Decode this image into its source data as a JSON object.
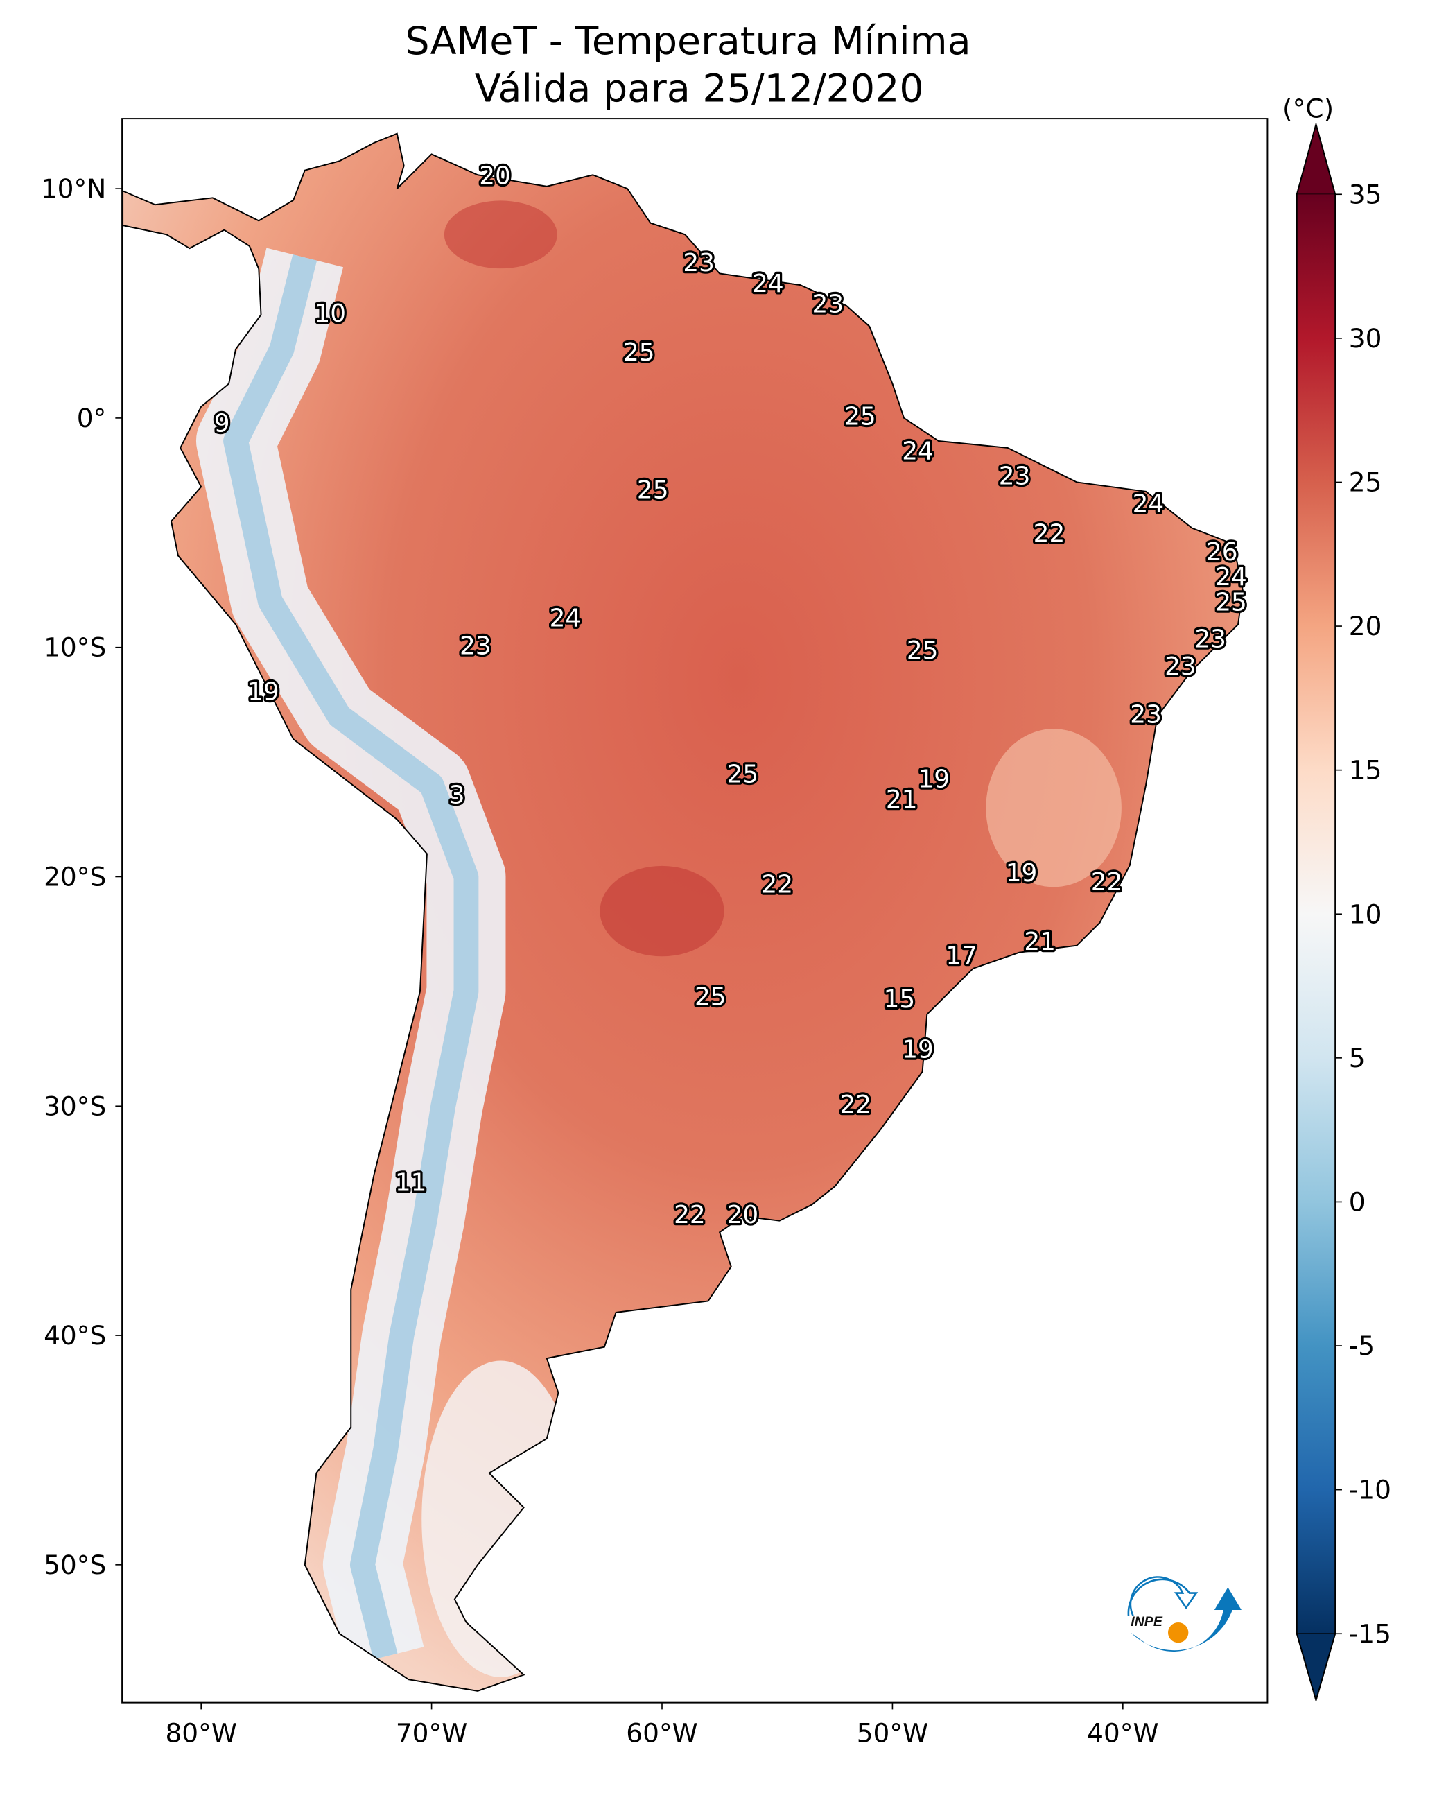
{
  "title": {
    "line1": "SAMeT - Temperatura Mínima",
    "line2": "Válida para 25/12/2020"
  },
  "map": {
    "extent": {
      "lon": [
        -83.4,
        -33.7
      ],
      "lat": [
        -56.0,
        12.9
      ]
    },
    "lon_ticks": [
      {
        "value": -80,
        "label": "80°W"
      },
      {
        "value": -70,
        "label": "70°W"
      },
      {
        "value": -60,
        "label": "60°W"
      },
      {
        "value": -50,
        "label": "50°W"
      },
      {
        "value": -40,
        "label": "40°W"
      }
    ],
    "lat_ticks": [
      {
        "value": 10,
        "label": "10°N"
      },
      {
        "value": 0,
        "label": "0°"
      },
      {
        "value": -10,
        "label": "10°S"
      },
      {
        "value": -20,
        "label": "20°S"
      },
      {
        "value": -30,
        "label": "30°S"
      },
      {
        "value": -40,
        "label": "40°S"
      },
      {
        "value": -50,
        "label": "50°S"
      }
    ],
    "temperature_labels": [
      {
        "lon": -67.25,
        "lat": 10.6,
        "value": "20"
      },
      {
        "lon": -58.4,
        "lat": 6.8,
        "value": "23"
      },
      {
        "lon": -55.4,
        "lat": 5.9,
        "value": "24"
      },
      {
        "lon": -52.8,
        "lat": 5.0,
        "value": "23"
      },
      {
        "lon": -74.4,
        "lat": 4.6,
        "value": "10"
      },
      {
        "lon": -61.0,
        "lat": 2.9,
        "value": "25"
      },
      {
        "lon": -79.1,
        "lat": -0.2,
        "value": "9"
      },
      {
        "lon": -51.4,
        "lat": 0.1,
        "value": "25"
      },
      {
        "lon": -48.9,
        "lat": -1.4,
        "value": "24"
      },
      {
        "lon": -60.4,
        "lat": -3.1,
        "value": "25"
      },
      {
        "lon": -44.7,
        "lat": -2.5,
        "value": "23"
      },
      {
        "lon": -38.9,
        "lat": -3.7,
        "value": "24"
      },
      {
        "lon": -43.2,
        "lat": -5.0,
        "value": "22"
      },
      {
        "lon": -35.7,
        "lat": -5.8,
        "value": "26"
      },
      {
        "lon": -35.3,
        "lat": -6.9,
        "value": "24"
      },
      {
        "lon": -35.3,
        "lat": -8.0,
        "value": "25"
      },
      {
        "lon": -64.2,
        "lat": -8.7,
        "value": "24"
      },
      {
        "lon": -48.7,
        "lat": -10.1,
        "value": "25"
      },
      {
        "lon": -36.2,
        "lat": -9.6,
        "value": "23"
      },
      {
        "lon": -68.1,
        "lat": -9.9,
        "value": "23"
      },
      {
        "lon": -37.5,
        "lat": -10.8,
        "value": "23"
      },
      {
        "lon": -77.3,
        "lat": -11.9,
        "value": "19"
      },
      {
        "lon": -39.0,
        "lat": -12.9,
        "value": "23"
      },
      {
        "lon": -56.5,
        "lat": -15.5,
        "value": "25"
      },
      {
        "lon": -48.2,
        "lat": -15.7,
        "value": "19"
      },
      {
        "lon": -68.9,
        "lat": -16.4,
        "value": "3"
      },
      {
        "lon": -49.6,
        "lat": -16.6,
        "value": "21"
      },
      {
        "lon": -44.4,
        "lat": -19.8,
        "value": "19"
      },
      {
        "lon": -40.7,
        "lat": -20.2,
        "value": "22"
      },
      {
        "lon": -55.0,
        "lat": -20.3,
        "value": "22"
      },
      {
        "lon": -43.6,
        "lat": -22.8,
        "value": "21"
      },
      {
        "lon": -47.0,
        "lat": -23.4,
        "value": "17"
      },
      {
        "lon": -57.9,
        "lat": -25.2,
        "value": "25"
      },
      {
        "lon": -49.7,
        "lat": -25.3,
        "value": "15"
      },
      {
        "lon": -48.9,
        "lat": -27.5,
        "value": "19"
      },
      {
        "lon": -51.6,
        "lat": -29.9,
        "value": "22"
      },
      {
        "lon": -70.9,
        "lat": -33.3,
        "value": "11"
      },
      {
        "lon": -58.8,
        "lat": -34.7,
        "value": "22"
      },
      {
        "lon": -56.5,
        "lat": -34.7,
        "value": "20"
      }
    ]
  },
  "colorbar": {
    "unit": "(°C)",
    "range": [
      -15,
      35
    ],
    "ticks": [
      {
        "value": 35,
        "label": "35"
      },
      {
        "value": 30,
        "label": "30"
      },
      {
        "value": 25,
        "label": "25"
      },
      {
        "value": 20,
        "label": "20"
      },
      {
        "value": 15,
        "label": "15"
      },
      {
        "value": 10,
        "label": "10"
      },
      {
        "value": 5,
        "label": "5"
      },
      {
        "value": 0,
        "label": "0"
      },
      {
        "value": -5,
        "label": "-5"
      },
      {
        "value": -10,
        "label": "-10"
      },
      {
        "value": -15,
        "label": "-15"
      }
    ],
    "colors": [
      "#053061",
      "#2166ac",
      "#4393c3",
      "#92c5de",
      "#d1e5f0",
      "#f7f7f7",
      "#fddbc7",
      "#f4a582",
      "#d6604d",
      "#b2182b",
      "#67001f"
    ]
  },
  "logo": {
    "text": "INPE",
    "blue": "#0a77bb",
    "orange": "#f39200"
  }
}
